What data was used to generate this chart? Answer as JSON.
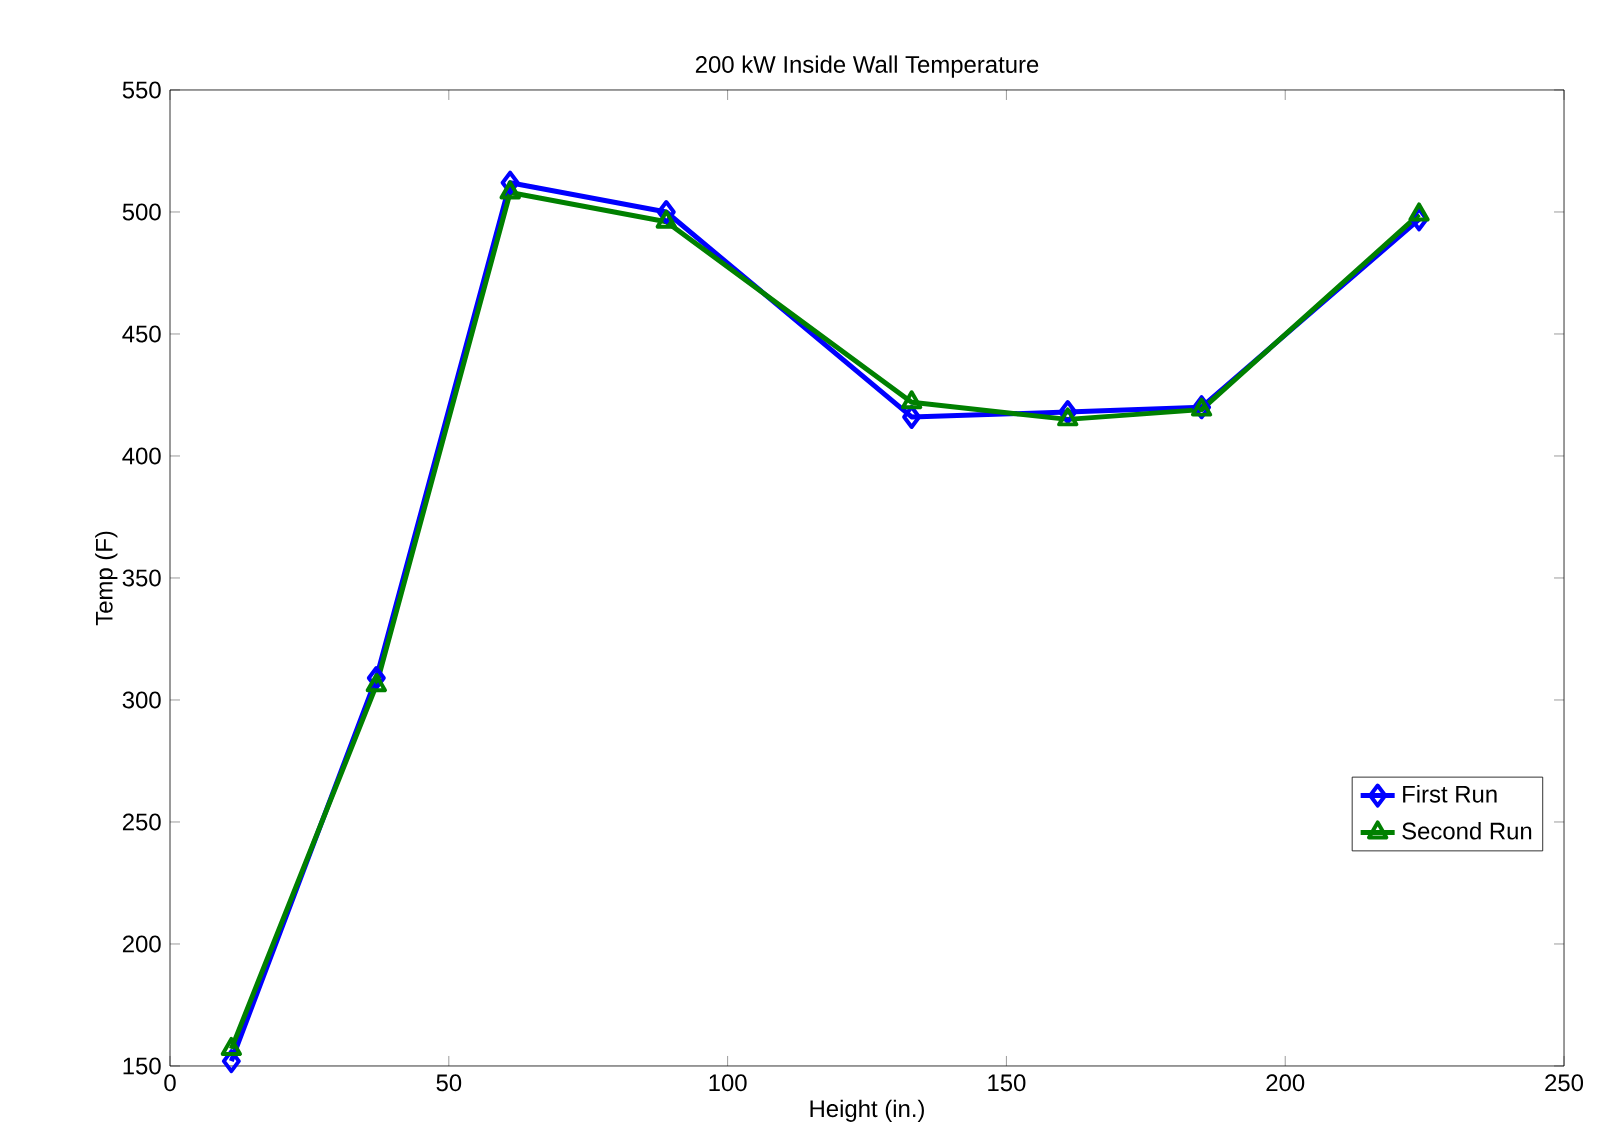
{
  "chart_data": {
    "type": "line",
    "title": "200 kW Inside Wall Temperature",
    "xlabel": "Height (in.)",
    "ylabel": "Temp (F)",
    "x": [
      11,
      37,
      61,
      89,
      133,
      161,
      185,
      224
    ],
    "series": [
      {
        "name": "First Run",
        "color": "#0000ff",
        "marker": "diamond",
        "values": [
          152,
          309,
          512,
          500,
          416,
          418,
          420,
          497
        ]
      },
      {
        "name": "Second Run",
        "color": "#008000",
        "marker": "triangle",
        "values": [
          157,
          306,
          508,
          496,
          422,
          415,
          419,
          499
        ]
      }
    ],
    "xlim": [
      0,
      250
    ],
    "xticks": [
      0,
      50,
      100,
      150,
      200,
      250
    ],
    "ylim": [
      150,
      550
    ],
    "yticks": [
      150,
      200,
      250,
      300,
      350,
      400,
      450,
      500,
      550
    ],
    "grid": false,
    "legend": "bottom right",
    "line_style": "solid"
  }
}
